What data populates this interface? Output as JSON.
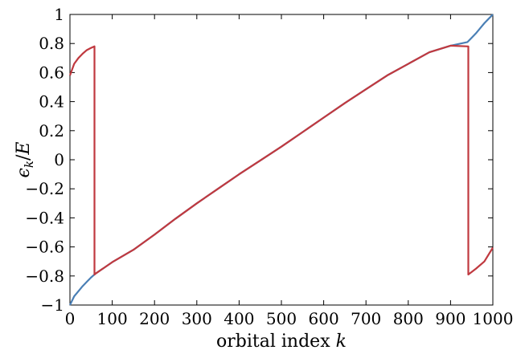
{
  "chart_data": {
    "type": "line",
    "title": "",
    "xlabel": "orbital index k",
    "ylabel": "ϵk/E",
    "xlim": [
      0,
      1000
    ],
    "ylim": [
      -1,
      1
    ],
    "grid": false,
    "legend": "none",
    "x_ticks": [
      0,
      100,
      200,
      300,
      400,
      500,
      600,
      700,
      800,
      900,
      1000
    ],
    "y_ticks": [
      -1,
      -0.8,
      -0.6,
      -0.4,
      -0.2,
      0,
      0.2,
      0.4,
      0.6,
      0.8,
      1
    ],
    "y_tick_labels": [
      "−1",
      "−0.8",
      "−0.6",
      "−0.4",
      "−0.2",
      "0",
      "0.2",
      "0.4",
      "0.6",
      "0.8",
      "1"
    ],
    "series": [
      {
        "color": "#4a7fb5",
        "x": [
          0,
          10,
          20,
          30,
          40,
          50,
          60,
          80,
          100,
          150,
          200,
          250,
          300,
          350,
          400,
          450,
          500,
          550,
          600,
          650,
          700,
          750,
          800,
          850,
          900,
          940,
          950,
          960,
          970,
          980,
          990,
          1000
        ],
        "y": [
          -1.0,
          -0.94,
          -0.905,
          -0.87,
          -0.84,
          -0.81,
          -0.785,
          -0.745,
          -0.705,
          -0.62,
          -0.515,
          -0.405,
          -0.3,
          -0.2,
          -0.1,
          -0.005,
          0.09,
          0.19,
          0.29,
          0.39,
          0.485,
          0.58,
          0.66,
          0.74,
          0.785,
          0.81,
          0.84,
          0.87,
          0.905,
          0.94,
          0.97,
          1.0
        ]
      },
      {
        "color": "#c0393f",
        "x": [
          0,
          10,
          20,
          30,
          40,
          50,
          58,
          58,
          60,
          80,
          100,
          150,
          200,
          250,
          300,
          350,
          400,
          450,
          500,
          550,
          600,
          650,
          700,
          750,
          800,
          850,
          900,
          942,
          942,
          960,
          980,
          1000
        ],
        "y": [
          0.58,
          0.66,
          0.7,
          0.73,
          0.755,
          0.77,
          0.78,
          -0.79,
          -0.785,
          -0.745,
          -0.705,
          -0.62,
          -0.515,
          -0.405,
          -0.3,
          -0.2,
          -0.1,
          -0.005,
          0.09,
          0.19,
          0.29,
          0.39,
          0.485,
          0.58,
          0.66,
          0.74,
          0.785,
          0.78,
          -0.79,
          -0.75,
          -0.7,
          -0.605
        ]
      }
    ]
  }
}
